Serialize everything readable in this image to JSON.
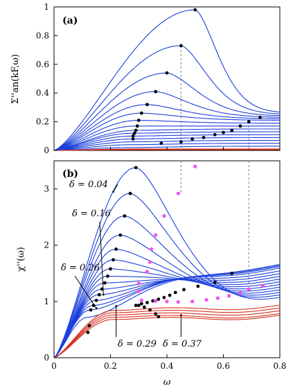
{
  "chart_data": [
    {
      "panel_label": "(a)",
      "type": "line",
      "ylabel": "Σ''an(kF,ω)",
      "xlim": [
        0,
        0.8
      ],
      "ylim": [
        0,
        1
      ],
      "yticks": [
        "0",
        "0.2",
        "0.4",
        "0.6",
        "0.8",
        "1"
      ],
      "colors": {
        "blue": "#1a3fdc",
        "red": "#d7301f",
        "marker": "#000000",
        "guide": "#7f7f7f"
      },
      "series": [
        {
          "peak_x": 0.5,
          "peak_y": 0.98,
          "tail_y": 0.26,
          "color": "blue"
        },
        {
          "peak_x": 0.45,
          "peak_y": 0.73,
          "tail_y": 0.25,
          "color": "blue"
        },
        {
          "peak_x": 0.4,
          "peak_y": 0.54,
          "tail_y": 0.24,
          "color": "blue"
        },
        {
          "peak_x": 0.36,
          "peak_y": 0.41,
          "tail_y": 0.23,
          "color": "blue"
        },
        {
          "peak_x": 0.33,
          "peak_y": 0.32,
          "tail_y": 0.22,
          "color": "blue"
        },
        {
          "peak_x": 0.31,
          "peak_y": 0.26,
          "tail_y": 0.21,
          "color": "blue"
        },
        {
          "peak_x": 0.3,
          "peak_y": 0.21,
          "tail_y": 0.19,
          "color": "blue"
        },
        {
          "peak_x": 0.29,
          "peak_y": 0.17,
          "tail_y": 0.17,
          "color": "blue"
        },
        {
          "peak_x": 0.29,
          "peak_y": 0.14,
          "tail_y": 0.15,
          "color": "blue"
        },
        {
          "peak_x": 0.28,
          "peak_y": 0.12,
          "tail_y": 0.13,
          "color": "blue"
        },
        {
          "peak_x": 0.28,
          "peak_y": 0.1,
          "tail_y": 0.11,
          "color": "blue"
        },
        {
          "peak_x": 0.28,
          "peak_y": 0.08,
          "tail_y": 0.09,
          "color": "blue"
        },
        {
          "peak_x": 0.28,
          "peak_y": 0.06,
          "tail_y": 0.07,
          "color": "blue"
        },
        {
          "peak_x": 0.28,
          "peak_y": 0.04,
          "tail_y": 0.05,
          "color": "blue"
        },
        {
          "peak_x": 0.28,
          "peak_y": 0.02,
          "tail_y": 0.03,
          "color": "blue"
        },
        {
          "peak_x": 0.3,
          "peak_y": 0.01,
          "tail_y": 0.01,
          "color": "red"
        },
        {
          "peak_x": 0.3,
          "peak_y": 0.005,
          "tail_y": 0.005,
          "color": "red"
        }
      ],
      "markers": [
        {
          "x": 0.5,
          "y": 0.98
        },
        {
          "x": 0.45,
          "y": 0.73
        },
        {
          "x": 0.4,
          "y": 0.54
        },
        {
          "x": 0.36,
          "y": 0.41
        },
        {
          "x": 0.33,
          "y": 0.32
        },
        {
          "x": 0.31,
          "y": 0.26
        },
        {
          "x": 0.3,
          "y": 0.21
        },
        {
          "x": 0.295,
          "y": 0.17
        },
        {
          "x": 0.29,
          "y": 0.14
        },
        {
          "x": 0.285,
          "y": 0.12
        },
        {
          "x": 0.28,
          "y": 0.1
        },
        {
          "x": 0.28,
          "y": 0.08
        },
        {
          "x": 0.38,
          "y": 0.05
        },
        {
          "x": 0.45,
          "y": 0.06
        },
        {
          "x": 0.49,
          "y": 0.08
        },
        {
          "x": 0.53,
          "y": 0.09
        },
        {
          "x": 0.57,
          "y": 0.11
        },
        {
          "x": 0.6,
          "y": 0.125
        },
        {
          "x": 0.63,
          "y": 0.14
        },
        {
          "x": 0.66,
          "y": 0.17
        },
        {
          "x": 0.69,
          "y": 0.2
        },
        {
          "x": 0.73,
          "y": 0.23
        }
      ],
      "guides": [
        {
          "x": 0.45,
          "y_top": 0.73
        },
        {
          "x": 0.69,
          "y_top": 0.2
        }
      ]
    },
    {
      "panel_label": "(b)",
      "type": "line",
      "xlabel": "ω",
      "ylabel": "χ''(ω)",
      "xlim": [
        0,
        0.8
      ],
      "ylim": [
        0,
        3.5
      ],
      "xticks": [
        "0",
        "0.2",
        "0.4",
        "0.6",
        "0.8"
      ],
      "yticks": [
        "0",
        "1",
        "2",
        "3"
      ],
      "colors": {
        "blue": "#1a3fdc",
        "red": "#d7301f",
        "marker": "#000000",
        "magenta": "#f04ff0",
        "guide": "#7f7f7f"
      },
      "series": [
        {
          "peak_x": 0.29,
          "peak_y": 3.38,
          "tail_y": 1.0,
          "color": "blue"
        },
        {
          "peak_x": 0.27,
          "peak_y": 2.92,
          "tail_y": 1.05,
          "color": "blue"
        },
        {
          "peak_x": 0.25,
          "peak_y": 2.52,
          "tail_y": 1.1,
          "color": "blue"
        },
        {
          "peak_x": 0.235,
          "peak_y": 2.18,
          "tail_y": 1.15,
          "color": "blue"
        },
        {
          "peak_x": 0.22,
          "peak_y": 1.93,
          "tail_y": 1.2,
          "color": "blue"
        },
        {
          "peak_x": 0.21,
          "peak_y": 1.74,
          "tail_y": 1.25,
          "color": "blue"
        },
        {
          "peak_x": 0.2,
          "peak_y": 1.58,
          "tail_y": 1.3,
          "color": "blue"
        },
        {
          "peak_x": 0.19,
          "peak_y": 1.45,
          "tail_y": 1.35,
          "color": "blue"
        },
        {
          "peak_x": 0.18,
          "peak_y": 1.33,
          "tail_y": 1.4,
          "color": "blue"
        },
        {
          "peak_x": 0.17,
          "peak_y": 1.22,
          "tail_y": 1.45,
          "color": "blue"
        },
        {
          "peak_x": 0.16,
          "peak_y": 1.12,
          "tail_y": 1.5,
          "color": "blue"
        },
        {
          "peak_x": 0.15,
          "peak_y": 1.02,
          "tail_y": 1.55,
          "color": "blue"
        },
        {
          "peak_x": 0.14,
          "peak_y": 0.93,
          "tail_y": 1.58,
          "color": "blue"
        },
        {
          "peak_x": 0.13,
          "peak_y": 0.85,
          "tail_y": 1.6,
          "color": "blue"
        },
        {
          "peak_x": 0.12,
          "peak_y": 0.72,
          "tail_y": 1.62,
          "color": "blue"
        },
        {
          "peak_x": 0.21,
          "peak_y": 0.84,
          "tail_y": 0.9,
          "color": "red"
        },
        {
          "peak_x": 0.21,
          "peak_y": 0.8,
          "tail_y": 0.85,
          "color": "red"
        },
        {
          "peak_x": 0.21,
          "peak_y": 0.76,
          "tail_y": 0.8,
          "color": "red"
        },
        {
          "peak_x": 0.21,
          "peak_y": 0.72,
          "tail_y": 0.75,
          "color": "red"
        },
        {
          "peak_x": 0.21,
          "peak_y": 0.68,
          "tail_y": 0.72,
          "color": "red"
        }
      ],
      "peak_markers": [
        {
          "x": 0.29,
          "y": 3.38
        },
        {
          "x": 0.27,
          "y": 2.92
        },
        {
          "x": 0.25,
          "y": 2.52
        },
        {
          "x": 0.235,
          "y": 2.18
        },
        {
          "x": 0.22,
          "y": 1.93
        },
        {
          "x": 0.21,
          "y": 1.74
        },
        {
          "x": 0.2,
          "y": 1.58
        },
        {
          "x": 0.19,
          "y": 1.45
        },
        {
          "x": 0.18,
          "y": 1.33
        },
        {
          "x": 0.17,
          "y": 1.22
        },
        {
          "x": 0.16,
          "y": 1.12
        },
        {
          "x": 0.15,
          "y": 1.02
        },
        {
          "x": 0.14,
          "y": 0.93
        },
        {
          "x": 0.13,
          "y": 0.85
        },
        {
          "x": 0.125,
          "y": 0.57
        },
        {
          "x": 0.12,
          "y": 0.45
        }
      ],
      "hump_markers": [
        {
          "x": 0.29,
          "y": 0.93
        },
        {
          "x": 0.31,
          "y": 0.96
        },
        {
          "x": 0.33,
          "y": 0.98
        },
        {
          "x": 0.35,
          "y": 1.01
        },
        {
          "x": 0.37,
          "y": 1.04
        },
        {
          "x": 0.39,
          "y": 1.07
        },
        {
          "x": 0.41,
          "y": 1.11
        },
        {
          "x": 0.43,
          "y": 1.16
        },
        {
          "x": 0.46,
          "y": 1.21
        },
        {
          "x": 0.51,
          "y": 1.27
        },
        {
          "x": 0.57,
          "y": 1.34
        },
        {
          "x": 0.63,
          "y": 1.5
        },
        {
          "x": 0.3,
          "y": 0.93
        },
        {
          "x": 0.32,
          "y": 0.9
        },
        {
          "x": 0.34,
          "y": 0.85
        },
        {
          "x": 0.36,
          "y": 0.78
        },
        {
          "x": 0.37,
          "y": 0.73
        }
      ],
      "magenta_points": [
        {
          "x": 0.5,
          "y": 3.4
        },
        {
          "x": 0.44,
          "y": 2.92
        },
        {
          "x": 0.39,
          "y": 2.52
        },
        {
          "x": 0.36,
          "y": 2.18
        },
        {
          "x": 0.345,
          "y": 1.93
        },
        {
          "x": 0.34,
          "y": 1.7
        },
        {
          "x": 0.33,
          "y": 1.53
        },
        {
          "x": 0.3,
          "y": 1.32
        },
        {
          "x": 0.3,
          "y": 1.18
        },
        {
          "x": 0.31,
          "y": 1.02
        },
        {
          "x": 0.36,
          "y": 1.01
        },
        {
          "x": 0.4,
          "y": 1.0
        },
        {
          "x": 0.44,
          "y": 0.99
        },
        {
          "x": 0.49,
          "y": 1.0
        },
        {
          "x": 0.54,
          "y": 1.03
        },
        {
          "x": 0.58,
          "y": 1.06
        },
        {
          "x": 0.62,
          "y": 1.1
        },
        {
          "x": 0.66,
          "y": 1.15
        },
        {
          "x": 0.69,
          "y": 1.22
        },
        {
          "x": 0.74,
          "y": 1.28
        }
      ],
      "guides": [
        {
          "x": 0.45,
          "y_bottom": 2.92
        },
        {
          "x": 0.69,
          "y_bottom": 1.28
        }
      ],
      "annotations": [
        {
          "text": "δ = 0.04",
          "target_x": 0.21,
          "target_y": 2.95
        },
        {
          "text": "δ = 0.16",
          "target_x": 0.175,
          "target_y": 1.12
        },
        {
          "text": "δ = 0.26",
          "target_x": 0.15,
          "target_y": 0.88
        },
        {
          "text": "δ = 0.29",
          "target_x": 0.22,
          "target_y": 0.92
        },
        {
          "text": "δ = 0.37",
          "target_x": 0.45,
          "target_y": 0.76
        }
      ]
    }
  ]
}
